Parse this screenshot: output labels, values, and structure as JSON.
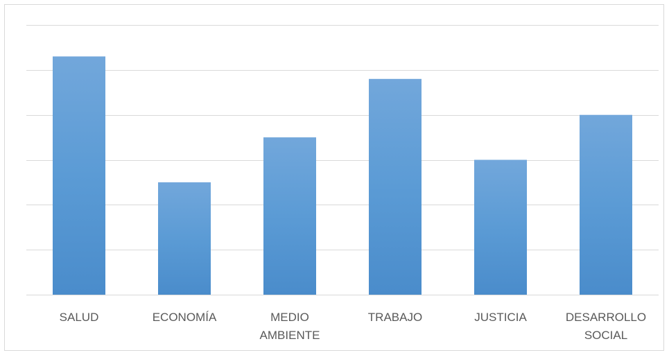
{
  "chart_data": {
    "type": "bar",
    "categories": [
      [
        "SALUD"
      ],
      [
        "ECONOMÍA"
      ],
      [
        "MEDIO",
        "AMBIENTE"
      ],
      [
        "TRABAJO"
      ],
      [
        "JUSTICIA"
      ],
      [
        "DESARROLLO",
        "SOCIAL"
      ]
    ],
    "values": [
      5.3,
      2.5,
      3.5,
      4.8,
      3.0,
      4.0
    ],
    "ylim": [
      0,
      6
    ],
    "title": "",
    "xlabel": "",
    "ylabel": "",
    "grid": true,
    "legend": "none",
    "colors": {
      "bar_top": "#72a7db",
      "bar_mid": "#5b9bd5",
      "bar_bottom": "#4a8ccb",
      "grid": "#d9d9d9",
      "axis": "#d9d9d9",
      "label": "#595959"
    }
  }
}
